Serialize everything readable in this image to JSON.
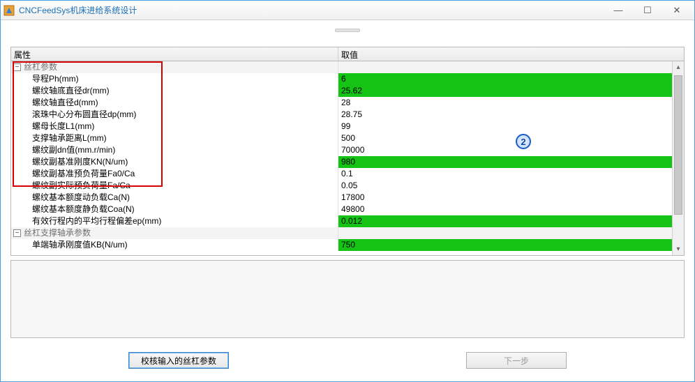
{
  "window": {
    "title": "CNCFeedSys机床进给系统设计",
    "minimize": "—",
    "maximize": "☐",
    "close": "✕"
  },
  "grid": {
    "header_name": "属性",
    "header_value": "取值",
    "groups": [
      {
        "label": "丝杠参数",
        "rows": [
          {
            "name": "导程Ph(mm)",
            "value": "6",
            "green": true
          },
          {
            "name": "螺纹轴底直径dr(mm)",
            "value": "25.62",
            "green": true
          },
          {
            "name": "螺纹轴直径d(mm)",
            "value": "28",
            "green": false
          },
          {
            "name": "滚珠中心分布圆直径dp(mm)",
            "value": "28.75",
            "green": false
          },
          {
            "name": "螺母长度L1(mm)",
            "value": "99",
            "green": false
          },
          {
            "name": "支撑轴承距离L(mm)",
            "value": "500",
            "green": false
          },
          {
            "name": "螺纹副dn值(mm.r/min)",
            "value": "70000",
            "green": false
          },
          {
            "name": "螺纹副基准刚度KN(N/um)",
            "value": "980",
            "green": true
          },
          {
            "name": "螺纹副基准预负荷量Fa0/Ca",
            "value": "0.1",
            "green": false
          },
          {
            "name": "螺纹副实际预负荷量Fa/Ca",
            "value": "0.05",
            "green": false
          },
          {
            "name": "螺纹基本额度动负载Ca(N)",
            "value": "17800",
            "green": false
          },
          {
            "name": "螺纹基本额度静负载Coa(N)",
            "value": "49800",
            "green": false
          },
          {
            "name": "有效行程内的平均行程偏差ep(mm)",
            "value": "0.012",
            "green": true
          }
        ]
      },
      {
        "label": "丝杠支撑轴承参数",
        "rows": [
          {
            "name": "单端轴承刚度值KB(N/um)",
            "value": "750",
            "green": true
          }
        ]
      }
    ]
  },
  "annotation_badge": "2",
  "buttons": {
    "verify": "校核输入的丝杠参数",
    "next": "下一步"
  },
  "colors": {
    "title_color": "#1a6fb5",
    "green_cell": "#14c314",
    "red_box": "#d60000",
    "badge_border": "#1a5cc8",
    "window_border": "#4a9de0"
  }
}
